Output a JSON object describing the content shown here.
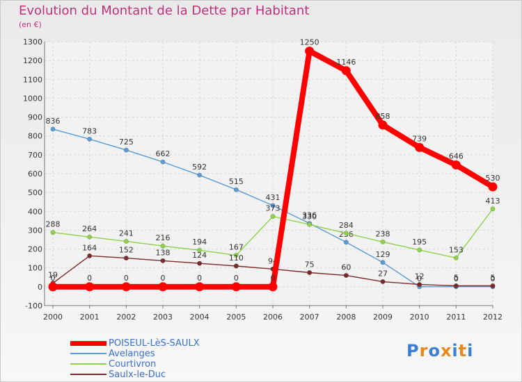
{
  "header": {
    "title": "Evolution du Montant de la Dette par Habitant",
    "subtitle": "(en €)"
  },
  "logo": {
    "letters": [
      "P",
      "r",
      "o",
      "x",
      "i",
      "t",
      "i"
    ],
    "colors": [
      "#3a7fd0",
      "#e8891a",
      "#3a7fd0",
      "#e8891a",
      "#3a7fd0",
      "#e8891a",
      "#3a7fd0"
    ]
  },
  "chart_data": {
    "type": "line",
    "x": [
      "2000",
      "2001",
      "2002",
      "2003",
      "2004",
      "2005",
      "2006",
      "2007",
      "2008",
      "2009",
      "2010",
      "2011",
      "2012"
    ],
    "ylim": [
      -100,
      1300
    ],
    "yticks": [
      -100,
      0,
      100,
      200,
      300,
      400,
      500,
      600,
      700,
      800,
      900,
      1000,
      1100,
      1200,
      1300
    ],
    "grid": true,
    "legend_position": "bottom-left",
    "series": [
      {
        "name": "Avelanges",
        "color": "#5a9bd5",
        "values": [
          836,
          783,
          725,
          662,
          592,
          515,
          431,
          336,
          236,
          129,
          0,
          0,
          0
        ],
        "labels": [
          "836",
          "783",
          "725",
          "662",
          "592",
          "515",
          "431",
          "336",
          "236",
          "129",
          "0",
          "0",
          "0"
        ]
      },
      {
        "name": "Courtivron",
        "color": "#8ed14a",
        "values": [
          288,
          264,
          241,
          216,
          194,
          167,
          373,
          330,
          284,
          238,
          195,
          153,
          413
        ],
        "labels": [
          "288",
          "264",
          "241",
          "216",
          "194",
          "167",
          "373",
          "330",
          "284",
          "238",
          "195",
          "153",
          "413"
        ]
      },
      {
        "name": "Saulx-le-Duc",
        "color": "#7a2a2a",
        "values": [
          19,
          164,
          152,
          138,
          124,
          110,
          94,
          75,
          60,
          27,
          12,
          5,
          5
        ],
        "labels": [
          "19",
          "164",
          "152",
          "138",
          "124",
          "110",
          "94",
          "75",
          "60",
          "27",
          "12",
          "5",
          "5"
        ]
      },
      {
        "name": "POISEUL-LèS-SAULX",
        "color": "#ff0000",
        "values": [
          0,
          0,
          0,
          0,
          0,
          0,
          0,
          1250,
          1146,
          858,
          739,
          646,
          530
        ],
        "labels": [
          "0",
          "0",
          "0",
          "0",
          "0",
          "0",
          "0",
          "1250",
          "1146",
          "858",
          "739",
          "646",
          "530"
        ]
      }
    ]
  },
  "legend": [
    {
      "label": "POISEUL-LèS-SAULX",
      "color": "#ff0000",
      "thickness": 7
    },
    {
      "label": "Avelanges",
      "color": "#5a9bd5",
      "thickness": 2
    },
    {
      "label": "Courtivron",
      "color": "#8ed14a",
      "thickness": 2
    },
    {
      "label": "Saulx-le-Duc",
      "color": "#7a2a2a",
      "thickness": 2
    }
  ]
}
